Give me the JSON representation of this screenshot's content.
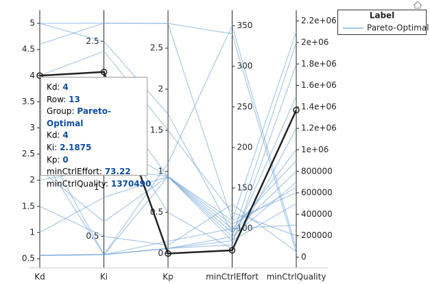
{
  "chart_data": {
    "type": "parallel",
    "axes": [
      {
        "name": "Kd",
        "ylim": [
          0.33,
          5.25
        ],
        "ticks": [
          0.5,
          1,
          1.5,
          2,
          2.5,
          3,
          3.5,
          4,
          4.5,
          5
        ],
        "tick_side": "left"
      },
      {
        "name": "Ki",
        "ylim": [
          0.18,
          2.82
        ],
        "ticks": [
          0.5,
          1,
          1.5,
          2,
          2.5
        ],
        "tick_side": "left"
      },
      {
        "name": "Kp",
        "ylim": [
          -0.17,
          2.96
        ],
        "ticks": [
          0,
          0.5,
          1,
          1.5,
          2,
          2.5
        ],
        "tick_side": "left"
      },
      {
        "name": "minCtrlEffort",
        "ylim": [
          52,
          369
        ],
        "ticks": [
          100,
          150,
          200,
          250,
          300,
          350
        ],
        "tick_side": "right"
      },
      {
        "name": "minCtrlQuality",
        "ylim": [
          -96000,
          2300000
        ],
        "ticks": [
          0,
          200000,
          400000,
          600000,
          800000,
          {
            "value": 1000000,
            "label": "1e+06"
          },
          {
            "value": 1200000,
            "label": "1.2e+06"
          },
          {
            "value": 1400000,
            "label": "1.4e+06"
          },
          {
            "value": 1600000,
            "label": "1.6e+06"
          },
          {
            "value": 1800000,
            "label": "1.8e+06"
          },
          {
            "value": 2000000,
            "label": "2e+06"
          },
          {
            "value": 2200000,
            "label": "2.2e+06"
          }
        ],
        "tick_side": "right"
      }
    ],
    "legend": {
      "title": "Label",
      "position": "right"
    },
    "series": [
      {
        "name": "Pareto-Optimal",
        "color": "#6fa3d6",
        "rows": [
          [
            5,
            2.6875,
            2.8,
            340,
            40000
          ],
          [
            5,
            2.5,
            1.7,
            95,
            1000000
          ],
          [
            4.6,
            2.6875,
            2.8,
            110,
            2100000
          ],
          [
            0.5625,
            0.3125,
            0.0625,
            90,
            2000000
          ],
          [
            0.5625,
            0.3125,
            0.0625,
            80,
            1800000
          ],
          [
            0.5625,
            0.3125,
            0.15,
            100,
            900000
          ],
          [
            2.5,
            0.3125,
            0.9375,
            110,
            600000
          ],
          [
            2.2,
            0.65,
            0.9375,
            90,
            700000
          ],
          [
            3.0,
            1.5,
            0.9375,
            85,
            500000
          ],
          [
            3.5,
            2.0,
            0.9375,
            100,
            300000
          ],
          [
            4.0,
            2.4,
            1.5,
            120,
            200000
          ],
          [
            2.0,
            1.2,
            0.9375,
            95,
            800000
          ],
          [
            4,
            2.1875,
            0,
            73.22,
            1370490
          ],
          [
            1.5,
            0.5,
            0.1,
            130,
            50000
          ],
          [
            2.8,
            0.3125,
            1.1,
            350,
            80000
          ],
          [
            0.5625,
            0.3125,
            0.0625,
            85,
            1500000
          ],
          [
            3.2,
            1.8,
            0.5,
            75,
            1200000
          ],
          [
            1.0,
            0.9,
            0.9375,
            105,
            650000
          ]
        ]
      }
    ],
    "highlight_color": "#222222",
    "tooltip": {
      "fields": [
        {
          "label": "Kd:",
          "value": 4
        },
        {
          "label": "Row:",
          "value": 13
        },
        {
          "label": "Group:",
          "value": "Pareto-Optimal"
        },
        {
          "label": "Kd:",
          "value": 4
        },
        {
          "label": "Ki:",
          "value": 2.1875
        },
        {
          "label": "Kp:",
          "value": 0
        },
        {
          "label": "minCtrlEffort:",
          "value": 73.22
        },
        {
          "label": "minCtrlQuality:",
          "value": 1370490
        }
      ]
    }
  }
}
